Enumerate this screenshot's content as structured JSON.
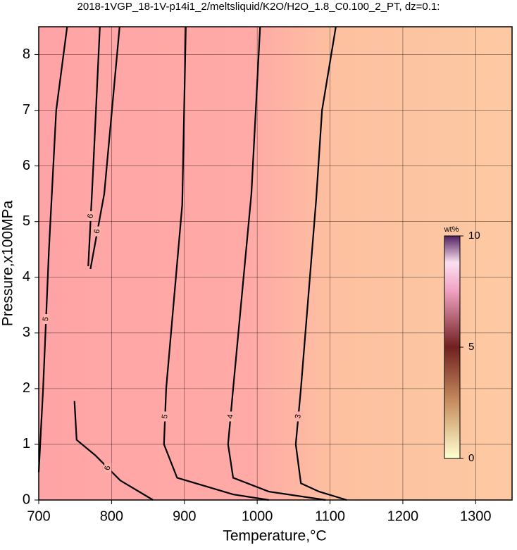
{
  "chart_data": {
    "type": "contour",
    "title": "2018-1VGP_18-1V-p14i1_2/meltsliquid/K2O/H2O_1.8_C0.100_2_PT, dz=0.1:",
    "x_label": "Temperature,°C",
    "y_label": "Pressure,x100MPa",
    "xlim": [
      700,
      1350
    ],
    "ylim": [
      0,
      8.5
    ],
    "xticks": [
      700,
      800,
      900,
      1000,
      1100,
      1200,
      1300
    ],
    "yticks": [
      0,
      1,
      2,
      3,
      4,
      5,
      6,
      7,
      8
    ],
    "grid": true,
    "contours": [
      {
        "level": 3,
        "x": [
          1108,
          1089,
          1081,
          1060,
          1053,
          1060,
          1085,
          1123
        ],
        "y": [
          8.5,
          7,
          5.4,
          2,
          1,
          0.3,
          0.15,
          0
        ]
      },
      {
        "level": 4,
        "x": [
          1004,
          992,
          967,
          960,
          967,
          1016,
          1094
        ],
        "y": [
          8.5,
          5.5,
          2,
          1,
          0.4,
          0.15,
          0
        ]
      },
      {
        "level": 5,
        "x": [
          902,
          897,
          875,
          872,
          890,
          967,
          1016
        ],
        "y": [
          8.5,
          5.3,
          2,
          1,
          0.4,
          0.1,
          0
        ]
      },
      {
        "level": 5,
        "x": [
          739,
          724,
          714,
          706,
          700
        ],
        "y": [
          8.5,
          7,
          4.5,
          2,
          0.5
        ]
      },
      {
        "level": 6,
        "x": [
          811,
          790,
          771
        ],
        "y": [
          8.5,
          5.5,
          4.15
        ]
      },
      {
        "level": 6,
        "x": [
          784,
          775,
          768
        ],
        "y": [
          8.5,
          6,
          4.2
        ]
      },
      {
        "level": 6,
        "x": [
          749,
          752,
          778,
          812,
          857
        ],
        "y": [
          1.78,
          1.08,
          0.8,
          0.35,
          0
        ]
      }
    ],
    "colorbar": {
      "label": "wt%",
      "lim": [
        0,
        10
      ],
      "ticks": [
        0,
        5,
        10
      ]
    }
  }
}
